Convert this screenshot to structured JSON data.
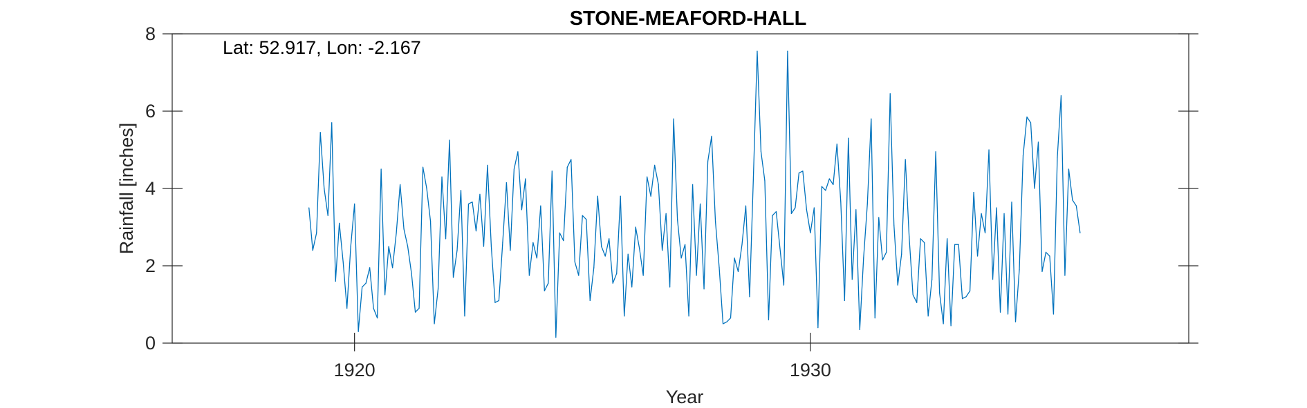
{
  "chart_data": {
    "type": "line",
    "title": "STONE-MEAFORD-HALL",
    "xlabel": "Year",
    "ylabel": "Rainfall [inches]",
    "annotation": "Lat: 52.917, Lon: -2.167",
    "xlim": [
      1916.0,
      1938.3
    ],
    "ylim": [
      0,
      8
    ],
    "xticks": [
      1920,
      1930
    ],
    "xtick_labels": [
      "1920",
      "1930"
    ],
    "yticks": [
      0,
      2,
      4,
      6,
      8
    ],
    "ytick_labels": [
      "0",
      "2",
      "4",
      "6",
      "8"
    ],
    "grid": false,
    "line_color": "#0072BD",
    "x_start": 1919.0,
    "x_step_months": 1,
    "series": [
      {
        "values": [
          3.5,
          2.4,
          2.85,
          5.45,
          4.0,
          3.3,
          5.7,
          1.6,
          3.1,
          2.1,
          0.9,
          2.5,
          3.6,
          0.3,
          1.45,
          1.55,
          1.95,
          0.9,
          0.65,
          4.5,
          1.25,
          2.5,
          1.95,
          2.85,
          4.1,
          2.95,
          2.5,
          1.8,
          0.8,
          0.9,
          4.55,
          4.0,
          3.15,
          0.5,
          1.4,
          4.3,
          2.7,
          5.25,
          1.7,
          2.4,
          3.95,
          0.7,
          3.6,
          3.65,
          2.9,
          3.85,
          2.5,
          4.6,
          2.5,
          1.05,
          1.1,
          2.6,
          4.15,
          2.4,
          4.5,
          4.95,
          3.45,
          4.25,
          1.75,
          2.6,
          2.2,
          3.55,
          1.35,
          1.55,
          4.45,
          0.15,
          2.85,
          2.65,
          4.55,
          4.75,
          2.1,
          1.75,
          3.3,
          3.2,
          1.1,
          1.95,
          3.8,
          2.5,
          2.25,
          2.7,
          1.55,
          1.8,
          3.8,
          0.7,
          2.3,
          1.45,
          3.0,
          2.45,
          1.75,
          4.3,
          3.8,
          4.6,
          4.1,
          2.4,
          3.35,
          1.45,
          5.8,
          3.2,
          2.2,
          2.55,
          0.7,
          4.1,
          1.75,
          3.6,
          1.4,
          4.7,
          5.35,
          3.15,
          1.95,
          0.5,
          0.55,
          0.65,
          2.2,
          1.85,
          2.55,
          3.55,
          1.2,
          4.3,
          7.55,
          4.95,
          4.2,
          0.6,
          3.3,
          3.4,
          2.45,
          1.5,
          7.55,
          3.35,
          3.5,
          4.4,
          4.45,
          3.45,
          2.85,
          3.5,
          0.4,
          4.05,
          3.95,
          4.25,
          4.1,
          5.15,
          3.65,
          1.1,
          5.3,
          1.65,
          3.45,
          0.35,
          2.2,
          3.6,
          5.8,
          0.65,
          3.25,
          2.15,
          2.35,
          6.45,
          3.05,
          1.5,
          2.3,
          4.75,
          2.75,
          1.25,
          1.05,
          2.7,
          2.6,
          0.7,
          1.65,
          4.95,
          1.3,
          0.5,
          2.7,
          0.45,
          2.55,
          2.55,
          1.15,
          1.2,
          1.35,
          3.9,
          2.25,
          3.35,
          2.85,
          5.0,
          1.65,
          3.5,
          0.8,
          3.35,
          0.75,
          3.65,
          0.55,
          1.9,
          4.85,
          5.85,
          5.7,
          4.0,
          5.2,
          1.85,
          2.35,
          2.25,
          0.75,
          4.8,
          6.4,
          1.75,
          4.5,
          3.7,
          3.55,
          2.85
        ]
      }
    ]
  }
}
